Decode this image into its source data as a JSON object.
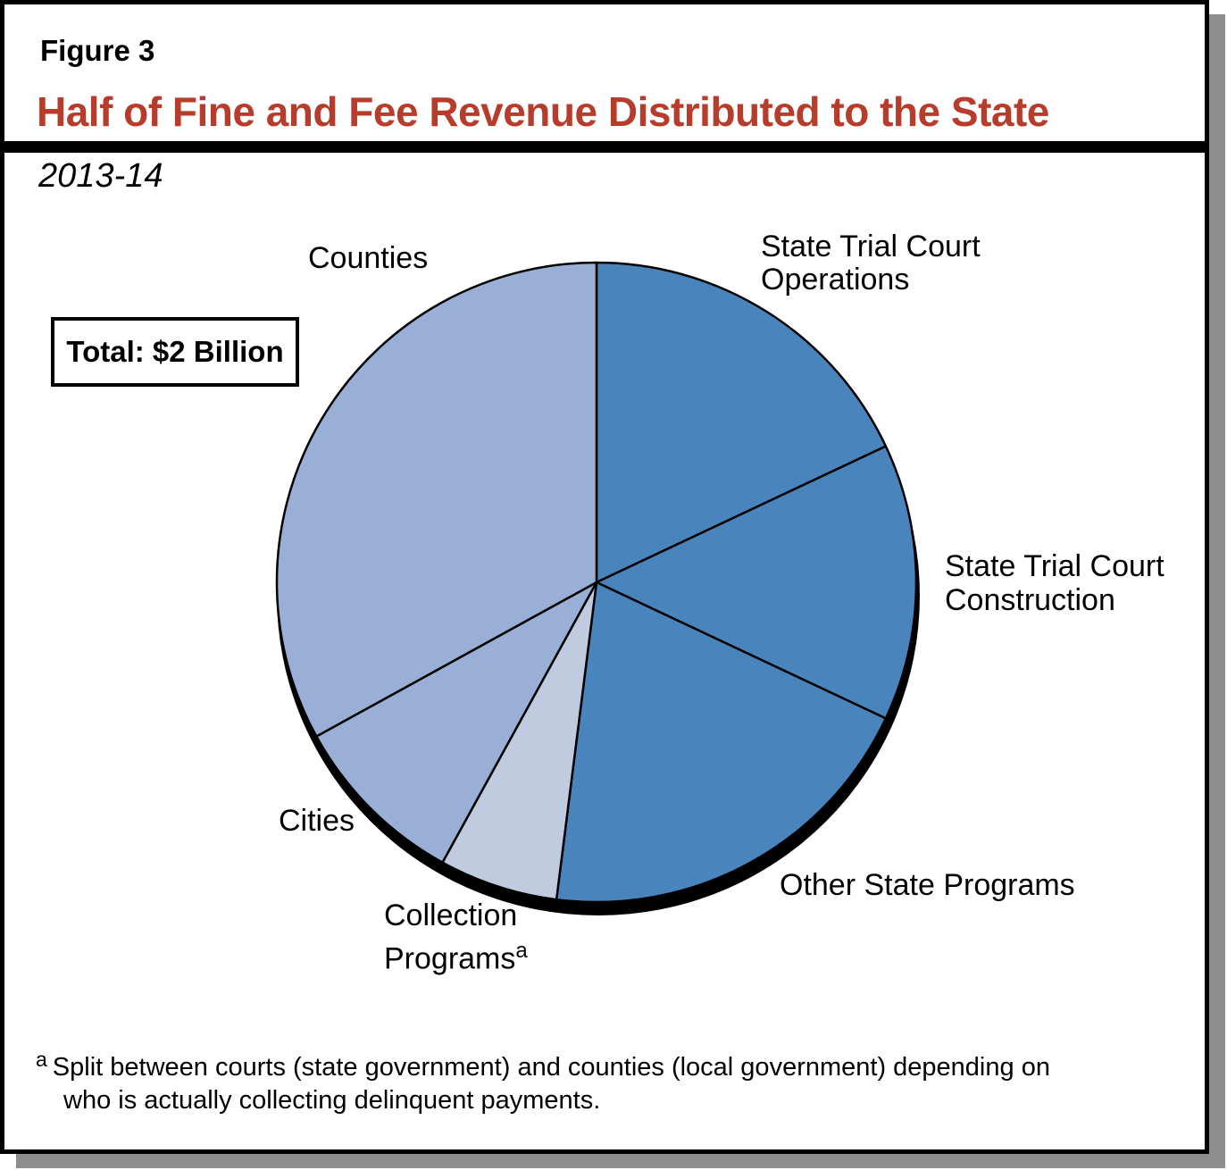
{
  "figure": {
    "label": "Figure 3",
    "title": "Half of Fine and Fee Revenue Distributed to the State",
    "subtitle": "2013-14",
    "total_box_text": "Total: $2 Billion",
    "footnote_marker": "a",
    "footnote_line1": "Split between courts (state government) and counties (local government) depending on",
    "footnote_line2": "who is actually collecting delinquent payments."
  },
  "colors": {
    "title_red": "#B83C2B",
    "state_slice_blue": "#4A84BC",
    "local_slice_blue": "#99AFD6",
    "collection_slice_blue": "#C0CBE0",
    "outline_black": "#000000",
    "drop_shadow_gray": "#8E8E8E"
  },
  "chart_data": {
    "type": "pie",
    "title": "Half of Fine and Fee Revenue Distributed to the State",
    "subtitle": "2013-14",
    "total_annotation": "Total: $2 Billion",
    "start_angle_deg": 0,
    "direction": "clockwise",
    "legend_position": "labels-around-pie",
    "value_note": "percent shares estimated from measured slice angles; no numeric labels shown in figure",
    "slices": [
      {
        "label": "State Trial Court Operations",
        "percent": 18,
        "angle_deg": 64.8,
        "color": "#4A84BC"
      },
      {
        "label": "State Trial Court Construction",
        "percent": 14,
        "angle_deg": 50.4,
        "color": "#4A84BC"
      },
      {
        "label": "Other State Programs",
        "percent": 20,
        "angle_deg": 72.0,
        "color": "#4A84BC"
      },
      {
        "label": "Collection Programs",
        "percent": 6,
        "angle_deg": 21.6,
        "color": "#C0CBE0",
        "footnote": "a"
      },
      {
        "label": "Cities",
        "percent": 9,
        "angle_deg": 32.4,
        "color": "#99AFD6"
      },
      {
        "label": "Counties",
        "percent": 33,
        "angle_deg": 118.8,
        "color": "#99AFD6"
      }
    ]
  },
  "annotations": {
    "counties": {
      "lines": [
        "Counties"
      ]
    },
    "operations": {
      "lines": [
        "State Trial Court",
        "Operations"
      ]
    },
    "construction": {
      "lines": [
        "State Trial Court",
        "Construction"
      ]
    },
    "other_state": {
      "lines": [
        "Other State Programs"
      ]
    },
    "collection": {
      "lines": [
        "Collection",
        "Programs"
      ],
      "superscript": "a"
    },
    "cities": {
      "lines": [
        "Cities"
      ]
    }
  }
}
